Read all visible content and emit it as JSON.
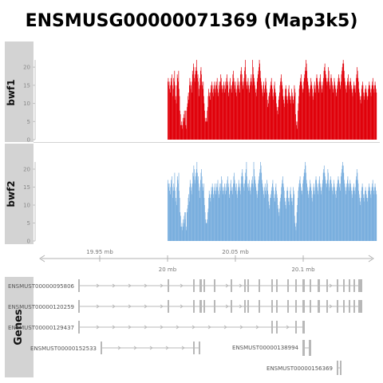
{
  "title": "ENSMUSG00000071369 (Map3k5)",
  "colors": {
    "track_bwf1": "#e0000a",
    "track_bwf2": "#79aede",
    "panel_bg": "#d3d3d3",
    "axis": "#b0b0b0",
    "gene": "#b8b8b8"
  },
  "chart_data": [
    {
      "type": "bar",
      "track": "bwf1",
      "ylabel": "bwf1",
      "yticks": [
        0,
        5,
        10,
        15,
        20
      ],
      "ylim": [
        0,
        24
      ],
      "x_mb_range": [
        19.98,
        20.1
      ],
      "values": [
        16,
        17,
        15,
        16,
        14,
        13,
        15,
        17,
        16,
        18,
        15,
        12,
        14,
        17,
        16,
        19,
        15,
        11,
        12,
        10,
        15,
        18,
        17,
        16,
        19,
        14,
        12,
        8,
        7,
        4,
        4,
        5,
        3,
        4,
        6,
        5,
        7,
        8,
        6,
        8,
        4,
        3,
        8,
        9,
        10,
        12,
        13,
        11,
        15,
        17,
        16,
        14,
        15,
        13,
        16,
        19,
        18,
        21,
        20,
        17,
        16,
        18,
        19,
        20,
        22,
        19,
        17,
        18,
        16,
        14,
        12,
        15,
        17,
        19,
        20,
        18,
        16,
        15,
        14,
        16,
        12,
        10,
        8,
        6,
        5,
        5,
        6,
        5,
        8,
        9,
        12,
        14,
        13,
        12,
        11,
        13,
        15,
        14,
        16,
        15,
        13,
        12,
        14,
        15,
        16,
        14,
        13,
        15,
        16,
        15,
        17,
        14,
        12,
        13,
        15,
        16,
        14,
        16,
        18,
        17,
        15,
        14,
        13,
        15,
        14,
        16,
        15,
        13,
        14,
        16,
        15,
        17,
        18,
        16,
        15,
        13,
        12,
        14,
        16,
        17,
        15,
        14,
        13,
        15,
        16,
        18,
        19,
        17,
        16,
        15,
        14,
        16,
        13,
        12,
        14,
        15,
        17,
        16,
        15,
        14,
        13,
        16,
        18,
        19,
        20,
        18,
        16,
        15,
        14,
        16,
        17,
        19,
        20,
        22,
        18,
        16,
        15,
        14,
        16,
        17,
        15,
        14,
        13,
        15,
        16,
        17,
        18,
        16,
        15,
        22,
        20,
        18,
        17,
        16,
        15,
        14,
        13,
        12,
        14,
        16,
        17,
        18,
        19,
        20,
        22,
        21,
        19,
        17,
        16,
        15,
        14,
        13,
        12,
        15,
        16,
        14,
        13,
        15,
        17,
        16,
        14,
        13,
        11,
        9,
        10,
        12,
        13,
        12,
        14,
        15,
        16,
        17,
        15,
        14,
        12,
        11,
        13,
        15,
        16,
        14,
        13,
        12,
        10,
        9,
        8,
        7,
        9,
        11,
        12,
        13,
        15,
        16,
        17,
        18,
        16,
        15,
        14,
        12,
        11,
        10,
        9,
        12,
        14,
        15,
        14,
        12,
        11,
        10,
        12,
        14,
        15,
        13,
        12,
        11,
        10,
        12,
        14,
        13,
        12,
        11,
        10,
        12,
        15,
        14,
        13,
        7,
        5,
        4,
        3,
        5,
        8,
        10,
        12,
        14,
        15,
        16,
        17,
        18,
        16,
        15,
        14,
        13,
        14,
        16,
        17,
        18,
        19,
        20,
        22,
        21,
        19,
        17,
        16,
        15,
        14,
        13,
        12,
        14,
        15,
        17,
        16,
        15,
        14,
        12,
        11,
        13,
        15,
        16,
        14,
        13,
        15,
        17,
        18,
        17,
        16,
        15,
        14,
        13,
        16,
        17,
        18,
        16,
        15,
        14,
        13,
        15,
        16,
        17,
        19,
        20,
        21,
        19,
        18,
        17,
        16,
        15,
        16,
        17,
        20,
        19,
        16,
        14,
        15,
        17,
        18,
        17,
        16,
        15,
        14,
        13,
        15,
        17,
        16,
        15,
        14,
        13,
        12,
        14,
        15,
        16,
        17,
        18,
        17,
        16,
        15,
        14,
        16,
        18,
        19,
        20,
        21,
        22,
        21,
        19,
        17,
        16,
        15,
        14,
        13,
        15,
        16,
        17,
        18,
        16,
        15,
        14,
        16,
        17,
        16,
        15,
        14,
        13,
        12,
        14,
        15,
        16,
        15,
        14,
        13,
        15,
        17,
        18,
        20,
        19,
        17,
        16,
        14,
        13,
        12,
        11,
        10,
        12,
        14,
        15,
        16,
        15,
        13,
        12,
        11,
        13,
        14,
        15,
        14,
        13,
        12,
        11,
        12,
        14,
        15,
        16,
        15,
        14,
        13,
        12,
        14,
        15,
        16,
        17,
        15,
        14,
        13,
        15,
        16,
        15,
        14,
        13
      ]
    },
    {
      "type": "bar",
      "track": "bwf2",
      "ylabel": "bwf2",
      "yticks": [
        0,
        5,
        10,
        15,
        20
      ],
      "ylim": [
        0,
        24
      ],
      "x_mb_range": [
        19.98,
        20.1
      ],
      "values": [
        17,
        16,
        15,
        16,
        14,
        13,
        15,
        17,
        16,
        18,
        15,
        12,
        14,
        16,
        15,
        19,
        14,
        11,
        12,
        10,
        15,
        18,
        17,
        16,
        19,
        14,
        12,
        8,
        7,
        4,
        4,
        5,
        3,
        4,
        6,
        5,
        7,
        8,
        6,
        8,
        4,
        3,
        8,
        9,
        10,
        12,
        13,
        11,
        15,
        17,
        16,
        14,
        15,
        13,
        16,
        19,
        18,
        21,
        20,
        17,
        16,
        18,
        19,
        20,
        22,
        19,
        17,
        18,
        16,
        14,
        12,
        15,
        17,
        19,
        20,
        18,
        16,
        15,
        14,
        16,
        12,
        10,
        8,
        6,
        5,
        5,
        6,
        5,
        8,
        9,
        12,
        14,
        13,
        12,
        11,
        13,
        15,
        14,
        16,
        15,
        13,
        12,
        14,
        15,
        16,
        14,
        13,
        15,
        16,
        15,
        17,
        14,
        12,
        13,
        15,
        16,
        14,
        16,
        18,
        17,
        15,
        14,
        13,
        15,
        14,
        16,
        15,
        13,
        14,
        16,
        15,
        17,
        18,
        16,
        15,
        13,
        12,
        14,
        16,
        17,
        15,
        14,
        13,
        15,
        16,
        18,
        19,
        17,
        16,
        15,
        14,
        16,
        13,
        12,
        14,
        15,
        17,
        16,
        15,
        14,
        13,
        16,
        18,
        19,
        20,
        18,
        16,
        15,
        14,
        16,
        17,
        19,
        20,
        22,
        18,
        16,
        15,
        14,
        16,
        17,
        15,
        14,
        13,
        15,
        16,
        17,
        18,
        16,
        15,
        22,
        20,
        18,
        17,
        16,
        15,
        14,
        13,
        12,
        14,
        16,
        17,
        18,
        19,
        20,
        22,
        21,
        19,
        17,
        16,
        15,
        14,
        13,
        12,
        15,
        16,
        14,
        13,
        15,
        17,
        16,
        14,
        13,
        11,
        9,
        10,
        12,
        13,
        12,
        14,
        15,
        16,
        17,
        15,
        14,
        12,
        11,
        13,
        15,
        16,
        14,
        13,
        12,
        10,
        9,
        8,
        7,
        9,
        11,
        12,
        13,
        15,
        16,
        17,
        18,
        16,
        15,
        14,
        12,
        11,
        10,
        9,
        12,
        14,
        15,
        14,
        12,
        11,
        10,
        12,
        14,
        15,
        13,
        12,
        11,
        10,
        12,
        15,
        14,
        13,
        7,
        5,
        4,
        3,
        5,
        8,
        10,
        12,
        14,
        15,
        16,
        17,
        18,
        16,
        15,
        14,
        13,
        14,
        16,
        17,
        18,
        19,
        20,
        22,
        21,
        19,
        17,
        16,
        15,
        14,
        13,
        12,
        14,
        15,
        17,
        16,
        15,
        14,
        12,
        11,
        13,
        15,
        16,
        14,
        13,
        15,
        17,
        18,
        17,
        16,
        15,
        14,
        13,
        16,
        17,
        18,
        16,
        15,
        14,
        13,
        15,
        16,
        17,
        19,
        20,
        21,
        19,
        18,
        17,
        16,
        15,
        16,
        17,
        20,
        19,
        16,
        14,
        15,
        17,
        18,
        17,
        16,
        15,
        14,
        13,
        15,
        17,
        16,
        15,
        14,
        13,
        12,
        14,
        15,
        16,
        17,
        18,
        17,
        16,
        15,
        14,
        16,
        18,
        19,
        20,
        21,
        22,
        21,
        19,
        17,
        16,
        15,
        14,
        13,
        15,
        16,
        17,
        18,
        16,
        15,
        14,
        16,
        17,
        16,
        15,
        14,
        13,
        12,
        14,
        15,
        16,
        15,
        14,
        13,
        15,
        17,
        18,
        20,
        19,
        17,
        16,
        14,
        13,
        12,
        11,
        10,
        12,
        14,
        15,
        16,
        15,
        13,
        12,
        11,
        13,
        14,
        15,
        14,
        13,
        12,
        11,
        12,
        14,
        15,
        16,
        15,
        14,
        13,
        12,
        14,
        15,
        16,
        17,
        15,
        14,
        13,
        15,
        16,
        15,
        14,
        13
      ]
    }
  ],
  "axis": {
    "ticks": [
      {
        "label": "19.95 mb",
        "pos": "upper"
      },
      {
        "label": "20 mb",
        "pos": "lower"
      },
      {
        "label": "20.05 mb",
        "pos": "upper"
      },
      {
        "label": "20.1 mb",
        "pos": "lower"
      }
    ]
  },
  "genes_panel": {
    "label": "Genes",
    "transcripts": [
      {
        "name": "ENSMUST00000095806"
      },
      {
        "name": "ENSMUST00000120259"
      },
      {
        "name": "ENSMUST00000129437"
      },
      {
        "name": "ENSMUST00000152533"
      },
      {
        "name": "ENSMUST00000138994"
      },
      {
        "name": "ENSMUST00000156369"
      }
    ]
  }
}
